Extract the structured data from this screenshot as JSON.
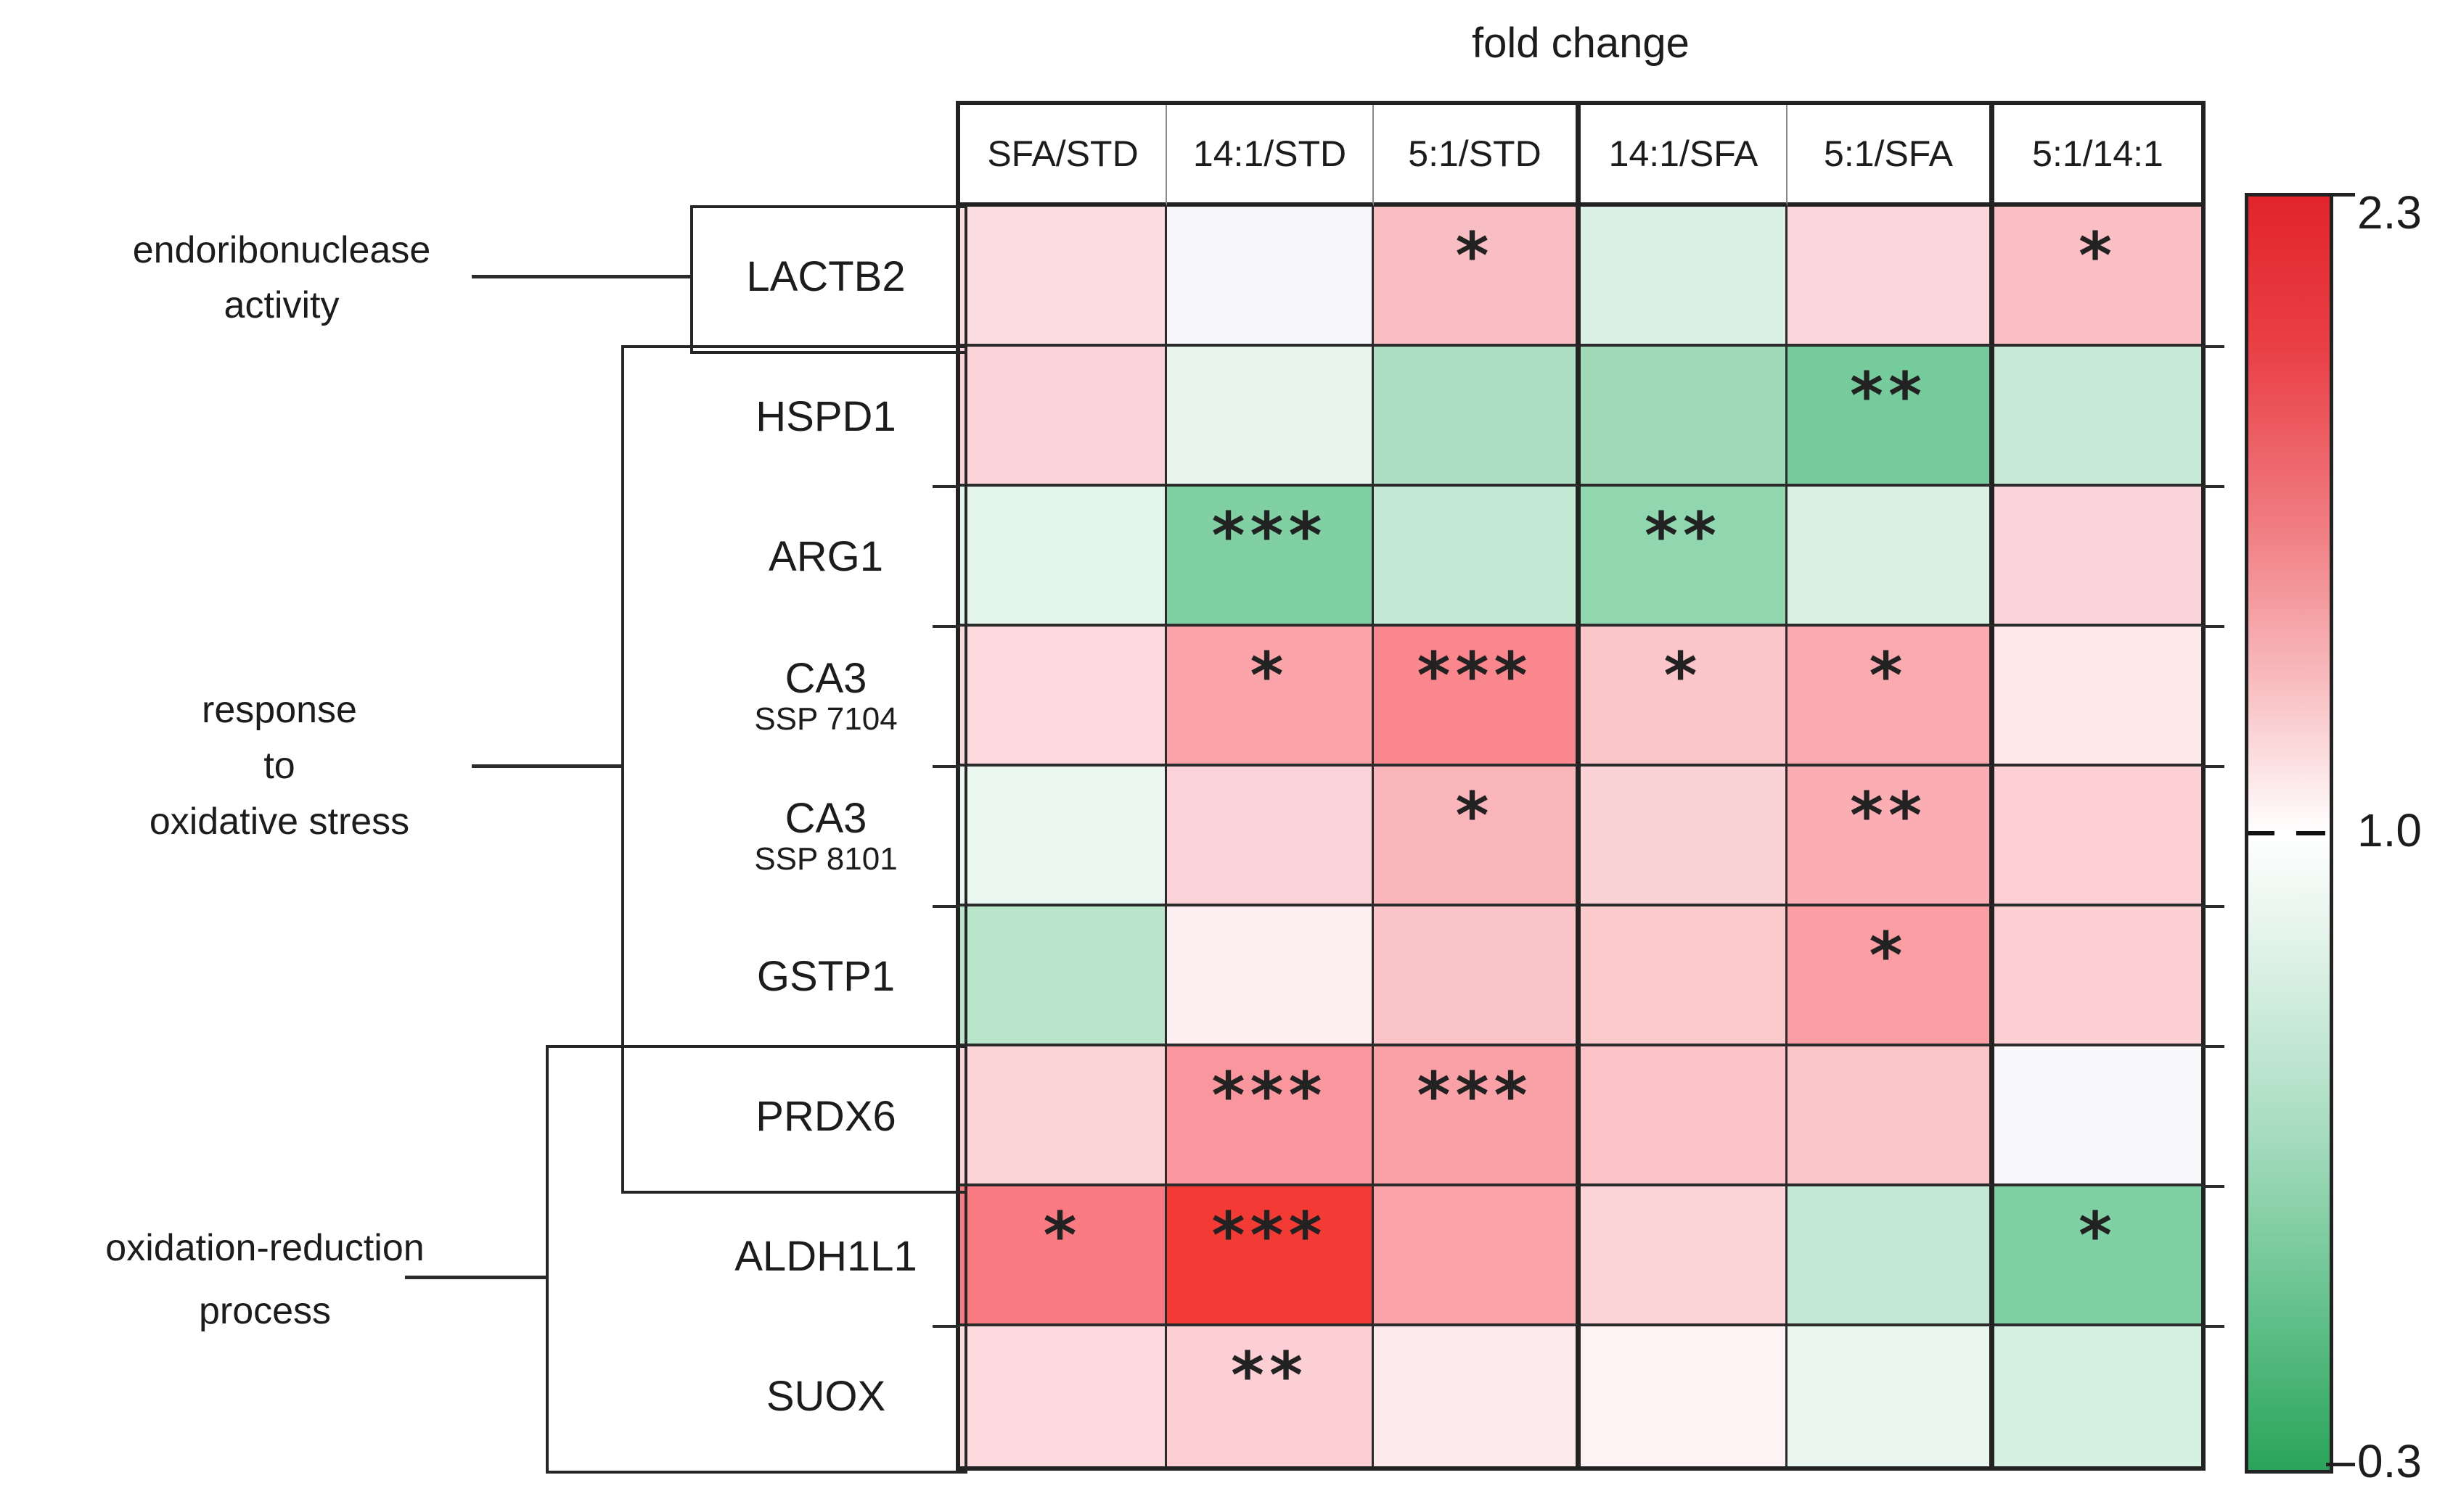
{
  "title": "fold change",
  "colorbar": {
    "max_label": "2.3",
    "mid_label": "1.0",
    "min_label": "0.3"
  },
  "groups": [
    {
      "label_lines": [
        "endoribonuclease",
        "activity"
      ]
    },
    {
      "label_lines": [
        "response",
        "to",
        "oxidative stress"
      ]
    },
    {
      "label_lines": [
        "oxidation-reduction",
        "process"
      ]
    }
  ],
  "chart_data": {
    "type": "heatmap",
    "title": "fold change",
    "columns": [
      "SFA/STD",
      "14:1/STD",
      "5:1/STD",
      "14:1/SFA",
      "5:1/SFA",
      "5:1/14:1"
    ],
    "column_groups": [
      [
        "SFA/STD",
        "14:1/STD",
        "5:1/STD"
      ],
      [
        "14:1/SFA",
        "5:1/SFA"
      ],
      [
        "5:1/14:1"
      ]
    ],
    "rows": [
      {
        "gene": "LACTB2",
        "subtitle": "",
        "colors": [
          "#fbdce0",
          "#f7f7fb",
          "#f9bec3",
          "#daf0e4",
          "#fbd7db",
          "#f9bfc4"
        ],
        "significance": [
          "",
          "",
          "*",
          "",
          "",
          "*"
        ]
      },
      {
        "gene": "HSPD1",
        "subtitle": "",
        "colors": [
          "#fbd3d8",
          "#e7f5ee",
          "#addec3",
          "#a0dab9",
          "#76cb9d",
          "#c7ead7"
        ],
        "significance": [
          "",
          "",
          "",
          "",
          "**",
          ""
        ]
      },
      {
        "gene": "ARG1",
        "subtitle": "",
        "colors": [
          "#e3f4eb",
          "#80d0a4",
          "#c3e8d3",
          "#90d6ae",
          "#d8f1e2",
          "#fbd4da"
        ],
        "significance": [
          "",
          "***",
          "",
          "**",
          "",
          ""
        ]
      },
      {
        "gene": "CA3",
        "subtitle": "SSP 7104",
        "colors": [
          "#fcd9dd",
          "#faa4a9",
          "#f9878d",
          "#fbc6ca",
          "#faa9ae",
          "#fde8ea"
        ],
        "significance": [
          "",
          "*",
          "***",
          "*",
          "*",
          ""
        ]
      },
      {
        "gene": "CA3",
        "subtitle": "SSP 8101",
        "colors": [
          "#ebf7f1",
          "#fcd3d8",
          "#fab5bb",
          "#fbd2d6",
          "#faaeb4",
          "#fcd0d5"
        ],
        "significance": [
          "",
          "",
          "*",
          "",
          "**",
          ""
        ]
      },
      {
        "gene": "GSTP1",
        "subtitle": "",
        "colors": [
          "#b9e5cb",
          "#fdeff2",
          "#fbc4c9",
          "#fbcacd",
          "#fa9ea4",
          "#fccfd3"
        ],
        "significance": [
          "",
          "",
          "",
          "",
          "*",
          ""
        ]
      },
      {
        "gene": "PRDX6",
        "subtitle": "",
        "colors": [
          "#fcd4d8",
          "#fa969d",
          "#faa1a7",
          "#fbc3c8",
          "#fbc6ca",
          "#f8f8fb"
        ],
        "significance": [
          "",
          "***",
          "***",
          "",
          "",
          ""
        ]
      },
      {
        "gene": "ALDH1L1",
        "subtitle": "",
        "colors": [
          "#f97b81",
          "#f43a35",
          "#faa3a8",
          "#fcd3d7",
          "#c3e8d3",
          "#7fd0a3"
        ],
        "significance": [
          "*",
          "***",
          "",
          "",
          "",
          "*"
        ]
      },
      {
        "gene": "SUOX",
        "subtitle": "",
        "colors": [
          "#fcdade",
          "#fbcfd4",
          "#fdeaec",
          "#fdf3f5",
          "#e8f6ef",
          "#d6f0e1"
        ],
        "significance": [
          "",
          "**",
          "",
          "",
          "",
          ""
        ]
      }
    ],
    "row_groups": [
      {
        "label": "endoribonuclease activity",
        "rows": [
          "LACTB2"
        ]
      },
      {
        "label": "response to oxidative stress",
        "rows": [
          "HSPD1",
          "ARG1",
          "CA3 SSP 7104",
          "CA3 SSP 8101",
          "GSTP1",
          "PRDX6"
        ]
      },
      {
        "label": "oxidation-reduction process",
        "rows": [
          "PRDX6",
          "ALDH1L1",
          "SUOX"
        ]
      }
    ],
    "colorbar": {
      "min": 0.3,
      "mid": 1.0,
      "max": 2.3,
      "min_color": "#2aa45a",
      "mid_color": "#ffffff",
      "max_color": "#e2242b",
      "orientation": "vertical",
      "position": "right"
    },
    "legend_position": "right",
    "grid": "on"
  }
}
